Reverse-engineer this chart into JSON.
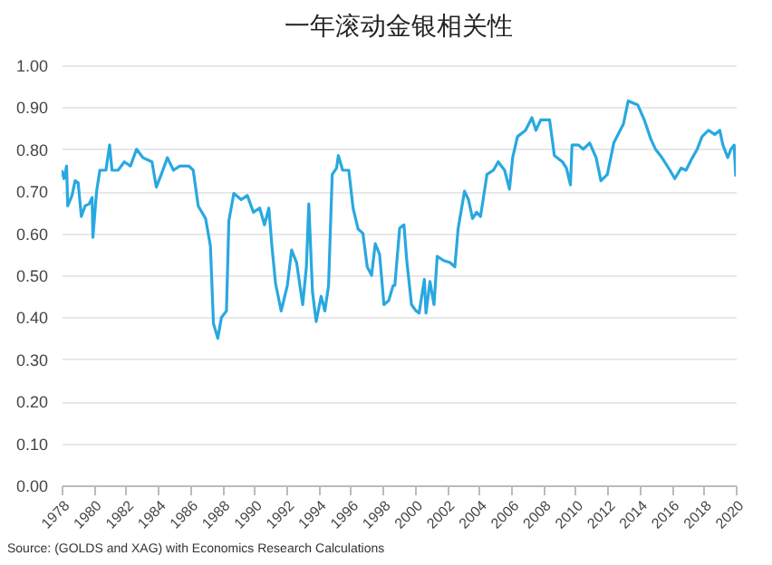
{
  "chart_data": {
    "type": "line",
    "title": "一年滚动金银相关性",
    "x": [
      1978.0,
      1978.15,
      1978.31,
      1978.38,
      1978.65,
      1978.84,
      1979.03,
      1979.23,
      1979.46,
      1979.72,
      1979.9,
      1979.95,
      1980.18,
      1980.38,
      1980.76,
      1980.99,
      1981.14,
      1981.52,
      1981.91,
      1982.29,
      1982.67,
      1983.06,
      1983.63,
      1983.9,
      1984.21,
      1984.59,
      1984.97,
      1985.36,
      1985.93,
      1986.2,
      1986.51,
      1986.97,
      1987.27,
      1987.46,
      1987.73,
      1987.96,
      1988.27,
      1988.42,
      1988.73,
      1989.19,
      1989.57,
      1989.95,
      1990.34,
      1990.64,
      1990.91,
      1991.1,
      1991.33,
      1991.68,
      1992.06,
      1992.33,
      1992.64,
      1993.02,
      1993.25,
      1993.4,
      1993.63,
      1993.86,
      1994.17,
      1994.4,
      1994.63,
      1994.86,
      1995.13,
      1995.24,
      1995.51,
      1995.89,
      1996.16,
      1996.47,
      1996.77,
      1997.04,
      1997.31,
      1997.54,
      1997.81,
      1998.08,
      1998.38,
      1998.65,
      1998.76,
      1999.06,
      1999.33,
      1999.5,
      1999.8,
      2000.08,
      2000.27,
      2000.6,
      2000.7,
      2000.95,
      2001.2,
      2001.4,
      2001.8,
      2002.2,
      2002.5,
      2002.7,
      2003.1,
      2003.35,
      2003.6,
      2003.85,
      2004.1,
      2004.5,
      2004.9,
      2005.2,
      2005.6,
      2005.9,
      2006.1,
      2006.4,
      2006.9,
      2007.3,
      2007.55,
      2007.85,
      2008.4,
      2008.7,
      2009.2,
      2009.45,
      2009.7,
      2009.8,
      2010.2,
      2010.5,
      2010.9,
      2011.3,
      2011.6,
      2012.0,
      2012.4,
      2013.0,
      2013.3,
      2013.9,
      2014.3,
      2014.7,
      2015.0,
      2015.4,
      2015.9,
      2016.2,
      2016.6,
      2016.9,
      2017.3,
      2017.6,
      2017.9,
      2018.3,
      2018.7,
      2019.0,
      2019.2,
      2019.5,
      2019.7,
      2019.9,
      2020.0
    ],
    "series": [
      {
        "color": "#29a8e0",
        "values": [
          0.75,
          0.73,
          0.76,
          0.665,
          0.69,
          0.725,
          0.72,
          0.64,
          0.665,
          0.67,
          0.685,
          0.59,
          0.7,
          0.75,
          0.75,
          0.81,
          0.75,
          0.75,
          0.77,
          0.76,
          0.8,
          0.78,
          0.77,
          0.71,
          0.74,
          0.78,
          0.75,
          0.76,
          0.76,
          0.75,
          0.665,
          0.635,
          0.57,
          0.385,
          0.35,
          0.4,
          0.415,
          0.63,
          0.695,
          0.68,
          0.69,
          0.65,
          0.66,
          0.62,
          0.66,
          0.57,
          0.48,
          0.415,
          0.475,
          0.56,
          0.53,
          0.43,
          0.52,
          0.67,
          0.46,
          0.39,
          0.45,
          0.415,
          0.475,
          0.74,
          0.755,
          0.785,
          0.75,
          0.75,
          0.66,
          0.61,
          0.6,
          0.52,
          0.5,
          0.575,
          0.55,
          0.43,
          0.44,
          0.475,
          0.476,
          0.612,
          0.62,
          0.536,
          0.43,
          0.415,
          0.41,
          0.49,
          0.41,
          0.485,
          0.43,
          0.545,
          0.535,
          0.53,
          0.52,
          0.61,
          0.7,
          0.68,
          0.635,
          0.65,
          0.64,
          0.74,
          0.75,
          0.77,
          0.75,
          0.705,
          0.78,
          0.83,
          0.845,
          0.875,
          0.845,
          0.87,
          0.87,
          0.785,
          0.77,
          0.755,
          0.715,
          0.81,
          0.81,
          0.8,
          0.815,
          0.78,
          0.725,
          0.74,
          0.815,
          0.86,
          0.915,
          0.905,
          0.87,
          0.825,
          0.8,
          0.78,
          0.75,
          0.73,
          0.755,
          0.75,
          0.78,
          0.8,
          0.83,
          0.845,
          0.835,
          0.845,
          0.81,
          0.78,
          0.8,
          0.81,
          0.735
        ]
      }
    ],
    "xlim": [
      1978,
      2020
    ],
    "xticks": [
      1978,
      1980,
      1982,
      1984,
      1986,
      1988,
      1990,
      1992,
      1994,
      1996,
      1998,
      2000,
      2002,
      2004,
      2006,
      2008,
      2010,
      2012,
      2014,
      2016,
      2018,
      2020
    ],
    "ylim": [
      0,
      1
    ],
    "yticks": [
      {
        "value": 0,
        "label": "0.00"
      },
      {
        "value": 0.1,
        "label": "0.10"
      },
      {
        "value": 0.2,
        "label": "0.20"
      },
      {
        "value": 0.3,
        "label": "0.30"
      },
      {
        "value": 0.4,
        "label": "0.40"
      },
      {
        "value": 0.5,
        "label": "0.50"
      },
      {
        "value": 0.6,
        "label": "0.60"
      },
      {
        "value": 0.7,
        "label": "0.70"
      },
      {
        "value": 0.8,
        "label": "0.80"
      },
      {
        "value": 0.9,
        "label": "0.90"
      },
      {
        "value": 1,
        "label": "1.00"
      }
    ],
    "grid": "y",
    "annotations": [
      "Source: (GOLDS and XAG) with Economics Research Calculations"
    ]
  }
}
